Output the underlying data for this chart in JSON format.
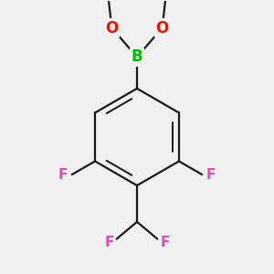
{
  "background_color": "#f0f0f0",
  "bond_color": "#1a1a1a",
  "boron_color": "#00bb00",
  "oxygen_color": "#ee1100",
  "fluorine_color": "#ee44bb",
  "bond_width": 1.6,
  "font_size_atom": 11,
  "figsize": [
    3.0,
    3.0
  ],
  "dpi": 100,
  "xlim": [
    -2.2,
    2.2
  ],
  "ylim": [
    -2.8,
    2.8
  ]
}
